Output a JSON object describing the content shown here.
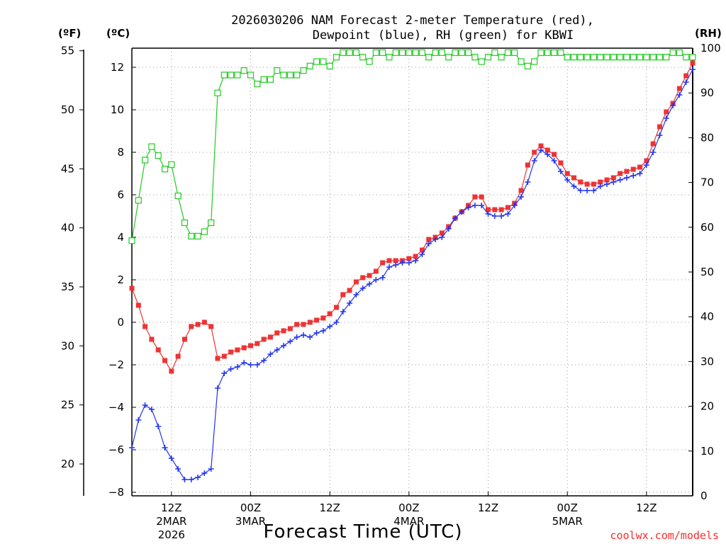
{
  "chart_data": {
    "type": "line",
    "title_lines": [
      "2026030206 NAM Forecast 2-meter Temperature (red),",
      "Dewpoint (blue), RH (green) for KBWI"
    ],
    "xlabel": "Forecast Time (UTC)",
    "credit": "coolwx.com/models",
    "units": {
      "fahrenheit": "(ºF)",
      "celsius": "(ºC)",
      "rh": "(RH)"
    },
    "x_hours_range": [
      0,
      84
    ],
    "y_celsius_range": [
      -8.4,
      13.0
    ],
    "y_rh_range": [
      0,
      100
    ],
    "x_ticks": [
      {
        "hour": 6,
        "label": "12Z",
        "sub1": "2MAR",
        "sub2": "2026"
      },
      {
        "hour": 18,
        "label": "00Z",
        "sub1": "3MAR",
        "sub2": ""
      },
      {
        "hour": 30,
        "label": "12Z",
        "sub1": "",
        "sub2": ""
      },
      {
        "hour": 42,
        "label": "00Z",
        "sub1": "4MAR",
        "sub2": ""
      },
      {
        "hour": 54,
        "label": "12Z",
        "sub1": "",
        "sub2": ""
      },
      {
        "hour": 66,
        "label": "00Z",
        "sub1": "5MAR",
        "sub2": ""
      },
      {
        "hour": 78,
        "label": "12Z",
        "sub1": "",
        "sub2": ""
      }
    ],
    "celsius_ticks": [
      -8,
      -6,
      -4,
      -2,
      0,
      2,
      4,
      6,
      8,
      10,
      12
    ],
    "celsius_tick_labels": [
      "−8",
      "−6",
      "−4",
      "−2",
      "0",
      "2",
      "4",
      "6",
      "8",
      "10",
      "12"
    ],
    "fahrenheit_ticks": [
      20,
      25,
      30,
      35,
      40,
      45,
      50,
      55
    ],
    "fahrenheit_tick_labels": [
      "20",
      "25",
      "30",
      "35",
      "40",
      "45",
      "50",
      "55"
    ],
    "rh_ticks": [
      0,
      10,
      20,
      30,
      40,
      50,
      60,
      70,
      80,
      90,
      100
    ],
    "rh_tick_labels": [
      "0",
      "10",
      "20",
      "30",
      "40",
      "50",
      "60",
      "70",
      "80",
      "90",
      "100"
    ],
    "series": [
      {
        "name": "Temperature",
        "unit": "C",
        "color": "#ee3333",
        "marker": "filled-square",
        "points": [
          [
            0,
            1.6
          ],
          [
            1,
            0.8
          ],
          [
            2,
            -0.2
          ],
          [
            3,
            -0.8
          ],
          [
            4,
            -1.3
          ],
          [
            5,
            -1.8
          ],
          [
            6,
            -2.3
          ],
          [
            7,
            -1.6
          ],
          [
            8,
            -0.8
          ],
          [
            9,
            -0.2
          ],
          [
            10,
            -0.1
          ],
          [
            11,
            0.0
          ],
          [
            12,
            -0.2
          ],
          [
            13,
            -1.7
          ],
          [
            14,
            -1.6
          ],
          [
            15,
            -1.4
          ],
          [
            16,
            -1.3
          ],
          [
            17,
            -1.2
          ],
          [
            18,
            -1.1
          ],
          [
            19,
            -1.0
          ],
          [
            20,
            -0.8
          ],
          [
            21,
            -0.7
          ],
          [
            22,
            -0.5
          ],
          [
            23,
            -0.4
          ],
          [
            24,
            -0.3
          ],
          [
            25,
            -0.1
          ],
          [
            26,
            -0.1
          ],
          [
            27,
            0.0
          ],
          [
            28,
            0.1
          ],
          [
            29,
            0.2
          ],
          [
            30,
            0.4
          ],
          [
            31,
            0.7
          ],
          [
            32,
            1.3
          ],
          [
            33,
            1.5
          ],
          [
            34,
            1.9
          ],
          [
            35,
            2.1
          ],
          [
            36,
            2.2
          ],
          [
            37,
            2.4
          ],
          [
            38,
            2.8
          ],
          [
            39,
            2.9
          ],
          [
            40,
            2.9
          ],
          [
            41,
            2.9
          ],
          [
            42,
            3.0
          ],
          [
            43,
            3.1
          ],
          [
            44,
            3.4
          ],
          [
            45,
            3.9
          ],
          [
            46,
            4.0
          ],
          [
            47,
            4.2
          ],
          [
            48,
            4.5
          ],
          [
            49,
            4.9
          ],
          [
            50,
            5.2
          ],
          [
            51,
            5.5
          ],
          [
            52,
            5.9
          ],
          [
            53,
            5.9
          ],
          [
            54,
            5.3
          ],
          [
            55,
            5.3
          ],
          [
            56,
            5.3
          ],
          [
            57,
            5.4
          ],
          [
            58,
            5.6
          ],
          [
            59,
            6.2
          ],
          [
            60,
            7.4
          ],
          [
            61,
            8.0
          ],
          [
            62,
            8.3
          ],
          [
            63,
            8.1
          ],
          [
            64,
            7.9
          ],
          [
            65,
            7.5
          ],
          [
            66,
            7.0
          ],
          [
            67,
            6.8
          ],
          [
            68,
            6.6
          ],
          [
            69,
            6.5
          ],
          [
            70,
            6.5
          ],
          [
            71,
            6.6
          ],
          [
            72,
            6.7
          ],
          [
            73,
            6.8
          ],
          [
            74,
            7.0
          ],
          [
            75,
            7.1
          ],
          [
            76,
            7.2
          ],
          [
            77,
            7.3
          ],
          [
            78,
            7.6
          ],
          [
            79,
            8.4
          ],
          [
            80,
            9.2
          ],
          [
            81,
            9.9
          ],
          [
            82,
            10.3
          ],
          [
            83,
            11.0
          ],
          [
            84,
            11.6
          ],
          [
            85,
            12.2
          ]
        ]
      },
      {
        "name": "Dewpoint",
        "unit": "C",
        "color": "#2233ee",
        "marker": "plus",
        "points": [
          [
            0,
            -5.9
          ],
          [
            1,
            -4.6
          ],
          [
            2,
            -3.9
          ],
          [
            3,
            -4.1
          ],
          [
            4,
            -4.9
          ],
          [
            5,
            -5.9
          ],
          [
            6,
            -6.4
          ],
          [
            7,
            -6.9
          ],
          [
            8,
            -7.4
          ],
          [
            9,
            -7.4
          ],
          [
            10,
            -7.3
          ],
          [
            11,
            -7.1
          ],
          [
            12,
            -6.9
          ],
          [
            13,
            -3.1
          ],
          [
            14,
            -2.4
          ],
          [
            15,
            -2.2
          ],
          [
            16,
            -2.1
          ],
          [
            17,
            -1.9
          ],
          [
            18,
            -2.0
          ],
          [
            19,
            -2.0
          ],
          [
            20,
            -1.8
          ],
          [
            21,
            -1.5
          ],
          [
            22,
            -1.3
          ],
          [
            23,
            -1.1
          ],
          [
            24,
            -0.9
          ],
          [
            25,
            -0.7
          ],
          [
            26,
            -0.6
          ],
          [
            27,
            -0.7
          ],
          [
            28,
            -0.5
          ],
          [
            29,
            -0.4
          ],
          [
            30,
            -0.2
          ],
          [
            31,
            0.0
          ],
          [
            32,
            0.5
          ],
          [
            33,
            0.9
          ],
          [
            34,
            1.3
          ],
          [
            35,
            1.6
          ],
          [
            36,
            1.8
          ],
          [
            37,
            2.0
          ],
          [
            38,
            2.1
          ],
          [
            39,
            2.6
          ],
          [
            40,
            2.7
          ],
          [
            41,
            2.8
          ],
          [
            42,
            2.8
          ],
          [
            43,
            2.9
          ],
          [
            44,
            3.2
          ],
          [
            45,
            3.7
          ],
          [
            46,
            3.9
          ],
          [
            47,
            4.0
          ],
          [
            48,
            4.4
          ],
          [
            49,
            4.9
          ],
          [
            50,
            5.2
          ],
          [
            51,
            5.4
          ],
          [
            52,
            5.5
          ],
          [
            53,
            5.5
          ],
          [
            54,
            5.1
          ],
          [
            55,
            5.0
          ],
          [
            56,
            5.0
          ],
          [
            57,
            5.1
          ],
          [
            58,
            5.5
          ],
          [
            59,
            5.9
          ],
          [
            60,
            6.6
          ],
          [
            61,
            7.6
          ],
          [
            62,
            8.1
          ],
          [
            63,
            7.9
          ],
          [
            64,
            7.6
          ],
          [
            65,
            7.1
          ],
          [
            66,
            6.7
          ],
          [
            67,
            6.4
          ],
          [
            68,
            6.2
          ],
          [
            69,
            6.2
          ],
          [
            70,
            6.2
          ],
          [
            71,
            6.4
          ],
          [
            72,
            6.5
          ],
          [
            73,
            6.6
          ],
          [
            74,
            6.7
          ],
          [
            75,
            6.8
          ],
          [
            76,
            6.9
          ],
          [
            77,
            7.0
          ],
          [
            78,
            7.4
          ],
          [
            79,
            8.0
          ],
          [
            80,
            8.8
          ],
          [
            81,
            9.6
          ],
          [
            82,
            10.2
          ],
          [
            83,
            10.7
          ],
          [
            84,
            11.3
          ],
          [
            85,
            11.9
          ]
        ]
      },
      {
        "name": "RH",
        "unit": "%",
        "color": "#22cc22",
        "marker": "open-square",
        "points": [
          [
            0,
            57
          ],
          [
            1,
            66
          ],
          [
            2,
            75
          ],
          [
            3,
            78
          ],
          [
            4,
            76
          ],
          [
            5,
            73
          ],
          [
            6,
            74
          ],
          [
            7,
            67
          ],
          [
            8,
            61
          ],
          [
            9,
            58
          ],
          [
            10,
            58
          ],
          [
            11,
            59
          ],
          [
            12,
            61
          ],
          [
            13,
            90
          ],
          [
            14,
            94
          ],
          [
            15,
            94
          ],
          [
            16,
            94
          ],
          [
            17,
            95
          ],
          [
            18,
            94
          ],
          [
            19,
            92
          ],
          [
            20,
            93
          ],
          [
            21,
            93
          ],
          [
            22,
            95
          ],
          [
            23,
            94
          ],
          [
            24,
            94
          ],
          [
            25,
            94
          ],
          [
            26,
            95
          ],
          [
            27,
            96
          ],
          [
            28,
            97
          ],
          [
            29,
            97
          ],
          [
            30,
            96
          ],
          [
            31,
            98
          ],
          [
            32,
            99
          ],
          [
            33,
            99
          ],
          [
            34,
            99
          ],
          [
            35,
            98
          ],
          [
            36,
            97
          ],
          [
            37,
            99
          ],
          [
            38,
            99
          ],
          [
            39,
            98
          ],
          [
            40,
            99
          ],
          [
            41,
            99
          ],
          [
            42,
            99
          ],
          [
            43,
            99
          ],
          [
            44,
            99
          ],
          [
            45,
            98
          ],
          [
            46,
            99
          ],
          [
            47,
            99
          ],
          [
            48,
            98
          ],
          [
            49,
            99
          ],
          [
            50,
            99
          ],
          [
            51,
            99
          ],
          [
            52,
            98
          ],
          [
            53,
            97
          ],
          [
            54,
            98
          ],
          [
            55,
            99
          ],
          [
            56,
            98
          ],
          [
            57,
            99
          ],
          [
            58,
            99
          ],
          [
            59,
            97
          ],
          [
            60,
            96
          ],
          [
            61,
            97
          ],
          [
            62,
            99
          ],
          [
            63,
            99
          ],
          [
            64,
            99
          ],
          [
            65,
            99
          ],
          [
            66,
            98
          ],
          [
            67,
            98
          ],
          [
            68,
            98
          ],
          [
            69,
            98
          ],
          [
            70,
            98
          ],
          [
            71,
            98
          ],
          [
            72,
            98
          ],
          [
            73,
            98
          ],
          [
            74,
            98
          ],
          [
            75,
            98
          ],
          [
            76,
            98
          ],
          [
            77,
            98
          ],
          [
            78,
            98
          ],
          [
            79,
            98
          ],
          [
            80,
            98
          ],
          [
            81,
            98
          ],
          [
            82,
            99
          ],
          [
            83,
            99
          ],
          [
            84,
            98
          ],
          [
            85,
            98
          ]
        ]
      }
    ]
  }
}
